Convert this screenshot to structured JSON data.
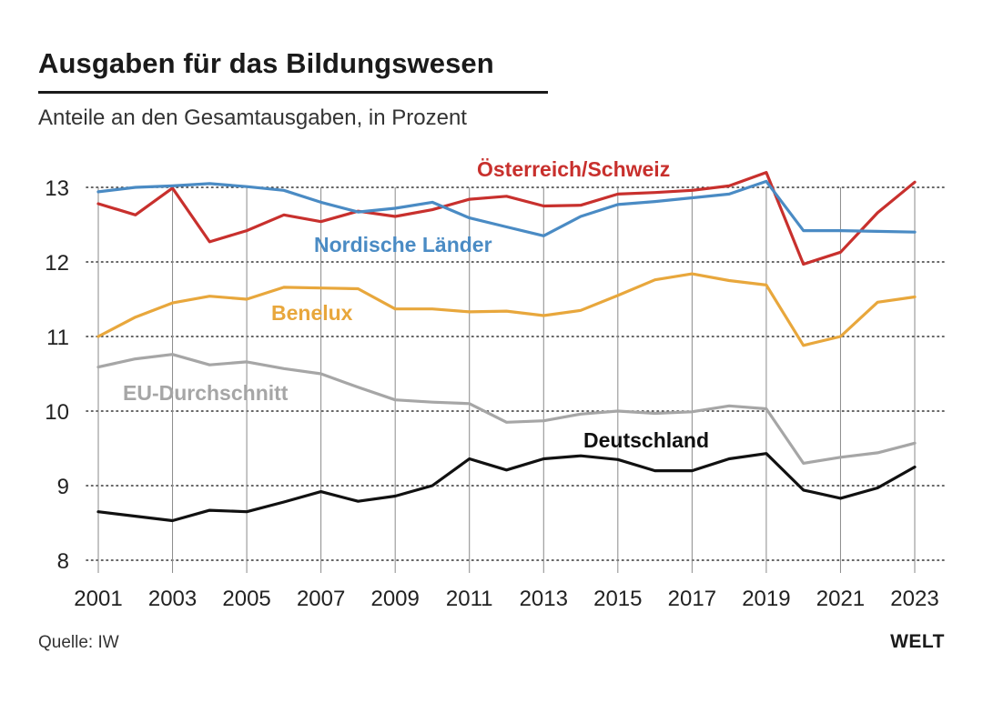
{
  "title": "Ausgaben für das Bildungswesen",
  "subtitle": "Anteile an den Gesamtausgaben, in Prozent",
  "source": "Quelle: IW",
  "brand": "WELT",
  "chart_data": {
    "type": "line",
    "title": "Ausgaben für das Bildungswesen",
    "subtitle": "Anteile an den Gesamtausgaben, in Prozent",
    "xlabel": "",
    "ylabel": "",
    "x": [
      2001,
      2002,
      2003,
      2004,
      2005,
      2006,
      2007,
      2008,
      2009,
      2010,
      2011,
      2012,
      2013,
      2014,
      2015,
      2016,
      2017,
      2018,
      2019,
      2020,
      2021,
      2022,
      2023
    ],
    "x_tick_labels": [
      "2001",
      "2003",
      "2005",
      "2007",
      "2009",
      "2011",
      "2013",
      "2015",
      "2017",
      "2019",
      "2021",
      "2023"
    ],
    "y_tick_labels": [
      "8",
      "9",
      "10",
      "11",
      "12",
      "13"
    ],
    "ylim": [
      8,
      13
    ],
    "grid": "horizontal dotted, vertical solid at labeled years",
    "legend": "inline labels next to lines",
    "series": [
      {
        "name": "Österreich/Schweiz",
        "color": "#c8302d",
        "values": [
          12.78,
          12.63,
          12.99,
          12.27,
          12.42,
          12.63,
          12.54,
          12.68,
          12.61,
          12.7,
          12.84,
          12.88,
          12.75,
          12.76,
          12.91,
          12.93,
          12.96,
          13.02,
          13.2,
          11.97,
          12.13,
          12.66,
          13.07
        ]
      },
      {
        "name": "Nordische Länder",
        "color": "#4a8bc4",
        "values": [
          12.94,
          13.0,
          13.02,
          13.05,
          13.01,
          12.96,
          12.8,
          12.67,
          12.72,
          12.8,
          12.59,
          12.47,
          12.35,
          12.61,
          12.77,
          12.81,
          12.86,
          12.91,
          13.08,
          12.42,
          12.42,
          12.41,
          12.4
        ]
      },
      {
        "name": "Benelux",
        "color": "#e8a73c",
        "values": [
          11.0,
          11.26,
          11.45,
          11.54,
          11.5,
          11.66,
          11.65,
          11.64,
          11.37,
          11.37,
          11.33,
          11.34,
          11.28,
          11.35,
          11.55,
          11.76,
          11.84,
          11.75,
          11.69,
          10.88,
          11.0,
          11.46,
          11.53
        ]
      },
      {
        "name": "EU-Durchschnitt",
        "color": "#a6a6a6",
        "values": [
          10.59,
          10.7,
          10.76,
          10.62,
          10.66,
          10.57,
          10.5,
          10.32,
          10.15,
          10.12,
          10.1,
          9.85,
          9.87,
          9.96,
          10.0,
          9.97,
          9.99,
          10.07,
          10.03,
          9.3,
          9.38,
          9.44,
          9.57
        ]
      },
      {
        "name": "Deutschland",
        "color": "#111111",
        "values": [
          8.65,
          8.59,
          8.53,
          8.67,
          8.65,
          8.78,
          8.92,
          8.79,
          8.86,
          9.0,
          9.36,
          9.21,
          9.36,
          9.4,
          9.35,
          9.2,
          9.2,
          9.36,
          9.43,
          8.94,
          8.83,
          8.97,
          9.25
        ]
      }
    ]
  }
}
